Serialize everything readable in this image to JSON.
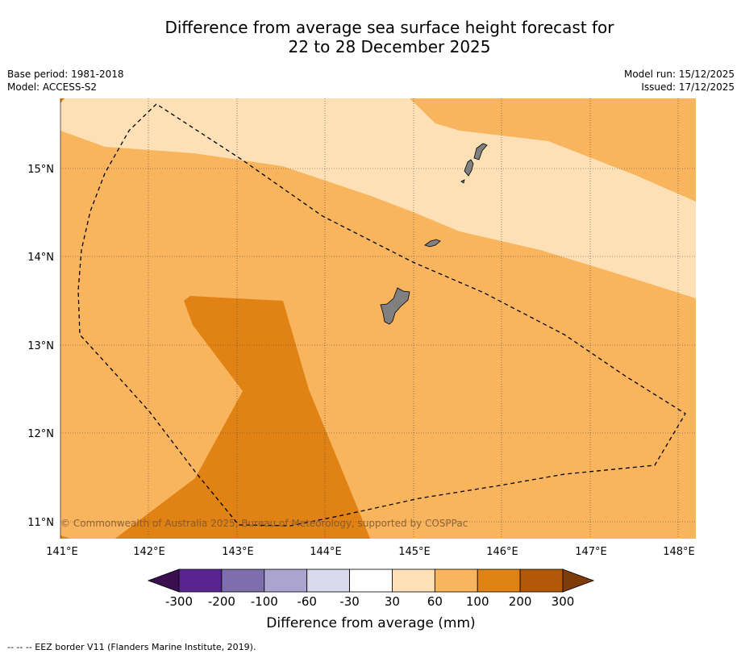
{
  "header": {
    "title_line1": "Difference from average sea surface height forecast for",
    "title_line2": "22 to 28 December 2025",
    "base_period": "Base period: 1981-2018",
    "model": "Model: ACCESS-S2",
    "model_run": "Model run: 15/12/2025",
    "issued": "Issued: 17/12/2025"
  },
  "map": {
    "lon_labels": [
      "141°E",
      "142°E",
      "143°E",
      "144°E",
      "145°E",
      "146°E",
      "147°E",
      "148°E"
    ],
    "lat_labels": [
      "15°N",
      "14°N",
      "13°N",
      "12°N",
      "11°N"
    ],
    "copyright": "© Commonwealth of Australia 2025, Bureau of Meteorology, supported by COSPPac",
    "land_color": "#808080",
    "eez_line_style": "dashed"
  },
  "colorbar": {
    "tick_labels": [
      "-300",
      "-200",
      "-100",
      "-60",
      "-30",
      "30",
      "60",
      "100",
      "200",
      "300"
    ],
    "colors": [
      "#3b0f4f",
      "#5a2490",
      "#7f6eae",
      "#aba4cf",
      "#d9d9ec",
      "#ffffff",
      "#fde0b5",
      "#f9b55d",
      "#e08214",
      "#b35806",
      "#7f3b08"
    ],
    "label": "Difference from average (mm)"
  },
  "footnote": "--  --  -- EEZ border V11 (Flanders Marine Institute, 2019)."
}
